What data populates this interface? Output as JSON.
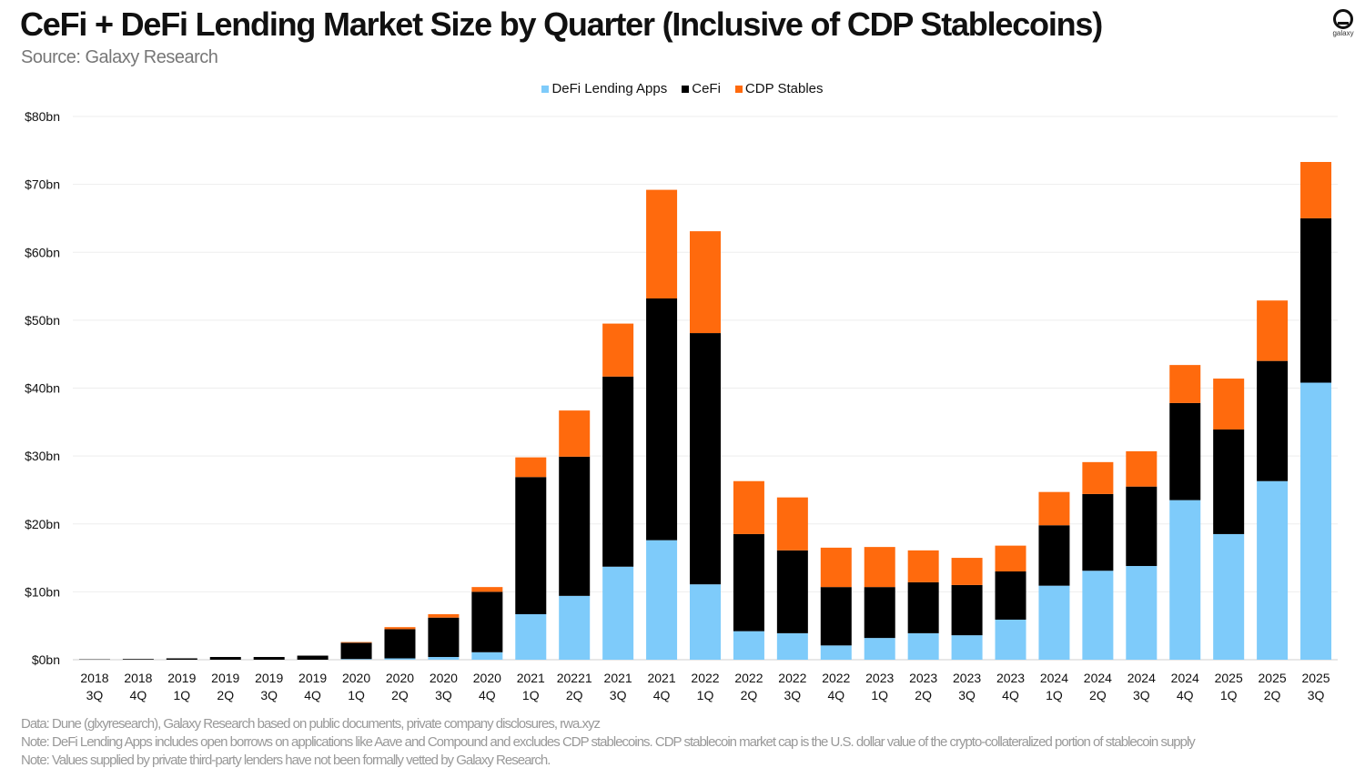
{
  "title": "CeFi + DeFi Lending Market Size by Quarter (Inclusive of CDP Stablecoins)",
  "subtitle": "Source: Galaxy Research",
  "logo": "galaxy",
  "notes": [
    "Data: Dune (glxyresearch), Galaxy Research based on public documents, private company disclosures, rwa.xyz",
    "Note: DeFi Lending Apps includes open borrows on applications like Aave and Compound and excludes CDP stablecoins. CDP stablecoin market cap is the U.S. dollar value of the crypto-collateralized portion of stablecoin supply",
    "Note: Values supplied by private third-party lenders have not been formally vetted  by Galaxy Research."
  ],
  "chart_data": {
    "type": "bar",
    "stacked": true,
    "title": "CeFi + DeFi Lending Market Size by Quarter (Inclusive of CDP Stablecoins)",
    "ylim": [
      0,
      80
    ],
    "yticks": [
      "$0bn",
      "$10bn",
      "$20bn",
      "$30bn",
      "$40bn",
      "$50bn",
      "$60bn",
      "$70bn",
      "$80bn"
    ],
    "grid": true,
    "legend_position": "top",
    "categories": [
      [
        "2018",
        "3Q"
      ],
      [
        "2018",
        "4Q"
      ],
      [
        "2019",
        "1Q"
      ],
      [
        "2019",
        "2Q"
      ],
      [
        "2019",
        "3Q"
      ],
      [
        "2019",
        "4Q"
      ],
      [
        "2020",
        "1Q"
      ],
      [
        "2020",
        "2Q"
      ],
      [
        "2020",
        "3Q"
      ],
      [
        "2020",
        "4Q"
      ],
      [
        "2021",
        "1Q"
      ],
      [
        "20221",
        "2Q"
      ],
      [
        "2021",
        "3Q"
      ],
      [
        "2021",
        "4Q"
      ],
      [
        "2022",
        "1Q"
      ],
      [
        "2022",
        "2Q"
      ],
      [
        "2022",
        "3Q"
      ],
      [
        "2022",
        "4Q"
      ],
      [
        "2023",
        "1Q"
      ],
      [
        "2023",
        "2Q"
      ],
      [
        "2023",
        "3Q"
      ],
      [
        "2023",
        "4Q"
      ],
      [
        "2024",
        "1Q"
      ],
      [
        "2024",
        "2Q"
      ],
      [
        "2024",
        "3Q"
      ],
      [
        "2024",
        "4Q"
      ],
      [
        "2025",
        "1Q"
      ],
      [
        "2025",
        "2Q"
      ],
      [
        "2025",
        "3Q"
      ]
    ],
    "series": [
      {
        "name": "DeFi Lending Apps",
        "color": "#7ecbfa",
        "values": [
          0,
          0,
          0,
          0,
          0,
          0,
          0.1,
          0.2,
          0.4,
          1.1,
          6.7,
          9.4,
          13.7,
          17.6,
          11.1,
          4.2,
          3.9,
          2.1,
          3.2,
          3.9,
          3.6,
          5.9,
          10.9,
          13.1,
          13.8,
          23.5,
          18.5,
          26.3,
          40.8
        ]
      },
      {
        "name": "CeFi",
        "color": "#000000",
        "values": [
          0.05,
          0.1,
          0.2,
          0.4,
          0.4,
          0.6,
          2.4,
          4.3,
          5.8,
          8.9,
          20.2,
          20.5,
          28.0,
          35.6,
          37.0,
          14.3,
          12.2,
          8.6,
          7.5,
          7.5,
          7.4,
          7.1,
          8.9,
          11.3,
          11.7,
          14.3,
          15.4,
          17.7,
          24.2
        ]
      },
      {
        "name": "CDP Stables",
        "color": "#ff6a0d",
        "values": [
          0,
          0,
          0,
          0,
          0,
          0,
          0.1,
          0.3,
          0.5,
          0.7,
          2.9,
          6.8,
          7.8,
          16.0,
          15.0,
          7.8,
          7.8,
          5.8,
          5.9,
          4.7,
          4.0,
          3.8,
          4.9,
          4.7,
          5.2,
          5.6,
          7.5,
          8.9,
          8.3
        ]
      }
    ]
  }
}
